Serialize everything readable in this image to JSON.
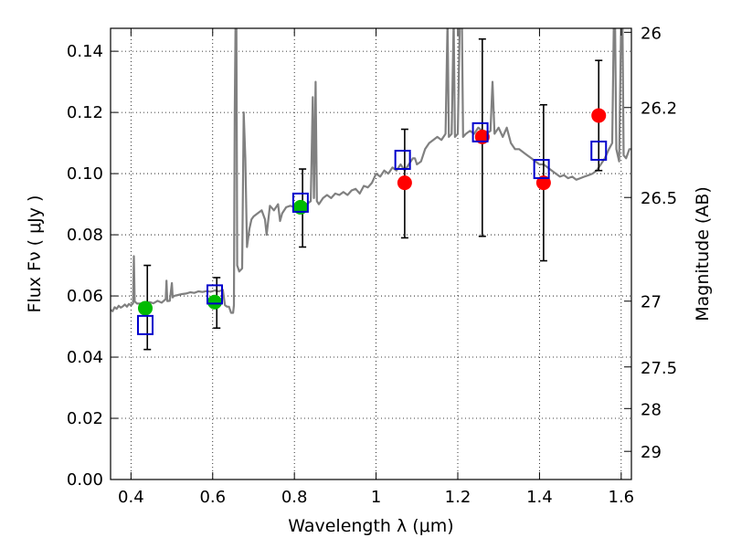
{
  "chart_data": {
    "type": "scatter",
    "xlabel": "Wavelength  λ (μm)",
    "ylabel": "Flux  Fν ( μJy )",
    "y2label": "Magnitude (AB)",
    "xlim": [
      0.35,
      1.625
    ],
    "ylim": [
      0.0,
      0.1475
    ],
    "grid": true,
    "x_ticks": [
      0.4,
      0.6,
      0.8,
      1.0,
      1.2,
      1.4,
      1.6
    ],
    "x_tick_labels": [
      "0.4",
      "0.6",
      "0.8",
      "1",
      "1.2",
      "1.4",
      "1.6"
    ],
    "y_ticks": [
      0.0,
      0.02,
      0.04,
      0.06,
      0.08,
      0.1,
      0.12,
      0.14
    ],
    "y_tick_labels": [
      "0.00",
      "0.02",
      "0.04",
      "0.06",
      "0.08",
      "0.10",
      "0.12",
      "0.14"
    ],
    "y2_ticks": [
      {
        "label": "26",
        "flux": 0.1462
      },
      {
        "label": "26.2",
        "flux": 0.1216
      },
      {
        "label": "26.5",
        "flux": 0.0922
      },
      {
        "label": "27",
        "flux": 0.0583
      },
      {
        "label": "27.5",
        "flux": 0.0368
      },
      {
        "label": "28",
        "flux": 0.0232
      },
      {
        "label": "29",
        "flux": 0.0092
      }
    ],
    "series": [
      {
        "name": "model spectrum",
        "kind": "line",
        "color": "#808080",
        "points": [
          [
            0.35,
            0.0555
          ],
          [
            0.355,
            0.055
          ],
          [
            0.36,
            0.0563
          ],
          [
            0.365,
            0.0558
          ],
          [
            0.37,
            0.0568
          ],
          [
            0.375,
            0.0562
          ],
          [
            0.38,
            0.0566
          ],
          [
            0.385,
            0.0572
          ],
          [
            0.39,
            0.0565
          ],
          [
            0.395,
            0.0574
          ],
          [
            0.4,
            0.0569
          ],
          [
            0.405,
            0.0576
          ],
          [
            0.407,
            0.073
          ],
          [
            0.409,
            0.0582
          ],
          [
            0.415,
            0.0575
          ],
          [
            0.425,
            0.0575
          ],
          [
            0.435,
            0.0577
          ],
          [
            0.445,
            0.058
          ],
          [
            0.455,
            0.0576
          ],
          [
            0.465,
            0.0584
          ],
          [
            0.475,
            0.0578
          ],
          [
            0.485,
            0.059
          ],
          [
            0.487,
            0.065
          ],
          [
            0.489,
            0.0583
          ],
          [
            0.495,
            0.0584
          ],
          [
            0.5,
            0.0642
          ],
          [
            0.502,
            0.0595
          ],
          [
            0.505,
            0.06
          ],
          [
            0.515,
            0.0603
          ],
          [
            0.525,
            0.0606
          ],
          [
            0.535,
            0.0608
          ],
          [
            0.545,
            0.0612
          ],
          [
            0.555,
            0.061
          ],
          [
            0.565,
            0.0615
          ],
          [
            0.575,
            0.0613
          ],
          [
            0.585,
            0.0616
          ],
          [
            0.595,
            0.0614
          ],
          [
            0.605,
            0.0618
          ],
          [
            0.615,
            0.0615
          ],
          [
            0.625,
            0.062
          ],
          [
            0.63,
            0.057
          ],
          [
            0.635,
            0.0565
          ],
          [
            0.64,
            0.0565
          ],
          [
            0.645,
            0.0545
          ],
          [
            0.65,
            0.0545
          ],
          [
            0.652,
            0.057
          ],
          [
            0.654,
            0.12
          ],
          [
            0.656,
            0.15
          ],
          [
            0.658,
            0.15
          ],
          [
            0.66,
            0.07
          ],
          [
            0.665,
            0.068
          ],
          [
            0.672,
            0.069
          ],
          [
            0.676,
            0.12
          ],
          [
            0.68,
            0.105
          ],
          [
            0.684,
            0.076
          ],
          [
            0.69,
            0.082
          ],
          [
            0.695,
            0.085
          ],
          [
            0.7,
            0.086
          ],
          [
            0.71,
            0.087
          ],
          [
            0.72,
            0.088
          ],
          [
            0.728,
            0.085
          ],
          [
            0.732,
            0.08
          ],
          [
            0.74,
            0.0895
          ],
          [
            0.75,
            0.088
          ],
          [
            0.76,
            0.09
          ],
          [
            0.765,
            0.0845
          ],
          [
            0.77,
            0.087
          ],
          [
            0.78,
            0.089
          ],
          [
            0.79,
            0.0895
          ],
          [
            0.8,
            0.089
          ],
          [
            0.81,
            0.09
          ],
          [
            0.82,
            0.0905
          ],
          [
            0.83,
            0.09
          ],
          [
            0.84,
            0.091
          ],
          [
            0.845,
            0.125
          ],
          [
            0.848,
            0.092
          ],
          [
            0.852,
            0.13
          ],
          [
            0.855,
            0.091
          ],
          [
            0.86,
            0.09
          ],
          [
            0.87,
            0.092
          ],
          [
            0.88,
            0.093
          ],
          [
            0.89,
            0.092
          ],
          [
            0.9,
            0.0935
          ],
          [
            0.91,
            0.093
          ],
          [
            0.92,
            0.094
          ],
          [
            0.93,
            0.093
          ],
          [
            0.94,
            0.0945
          ],
          [
            0.95,
            0.095
          ],
          [
            0.96,
            0.0935
          ],
          [
            0.97,
            0.096
          ],
          [
            0.98,
            0.0955
          ],
          [
            0.99,
            0.097
          ],
          [
            1.0,
            0.1
          ],
          [
            1.01,
            0.099
          ],
          [
            1.02,
            0.101
          ],
          [
            1.03,
            0.1
          ],
          [
            1.04,
            0.102
          ],
          [
            1.05,
            0.101
          ],
          [
            1.06,
            0.103
          ],
          [
            1.07,
            0.101
          ],
          [
            1.08,
            0.103
          ],
          [
            1.085,
            0.104
          ],
          [
            1.09,
            0.105
          ],
          [
            1.095,
            0.105
          ],
          [
            1.1,
            0.103
          ],
          [
            1.11,
            0.104
          ],
          [
            1.12,
            0.108
          ],
          [
            1.13,
            0.11
          ],
          [
            1.14,
            0.111
          ],
          [
            1.15,
            0.112
          ],
          [
            1.16,
            0.111
          ],
          [
            1.17,
            0.113
          ],
          [
            1.175,
            0.15
          ],
          [
            1.178,
            0.112
          ],
          [
            1.185,
            0.113
          ],
          [
            1.19,
            0.15
          ],
          [
            1.193,
            0.112
          ],
          [
            1.2,
            0.113
          ],
          [
            1.205,
            0.15
          ],
          [
            1.21,
            0.15
          ],
          [
            1.213,
            0.112
          ],
          [
            1.22,
            0.113
          ],
          [
            1.23,
            0.114
          ],
          [
            1.24,
            0.113
          ],
          [
            1.25,
            0.115
          ],
          [
            1.26,
            0.114
          ],
          [
            1.27,
            0.113
          ],
          [
            1.28,
            0.114
          ],
          [
            1.285,
            0.13
          ],
          [
            1.29,
            0.113
          ],
          [
            1.3,
            0.115
          ],
          [
            1.31,
            0.112
          ],
          [
            1.32,
            0.115
          ],
          [
            1.33,
            0.11
          ],
          [
            1.34,
            0.108
          ],
          [
            1.35,
            0.108
          ],
          [
            1.36,
            0.107
          ],
          [
            1.37,
            0.106
          ],
          [
            1.38,
            0.105
          ],
          [
            1.39,
            0.104
          ],
          [
            1.4,
            0.103
          ],
          [
            1.41,
            0.103
          ],
          [
            1.42,
            0.102
          ],
          [
            1.43,
            0.101
          ],
          [
            1.44,
            0.1
          ],
          [
            1.45,
            0.099
          ],
          [
            1.46,
            0.0995
          ],
          [
            1.47,
            0.0985
          ],
          [
            1.48,
            0.099
          ],
          [
            1.49,
            0.098
          ],
          [
            1.5,
            0.0985
          ],
          [
            1.51,
            0.099
          ],
          [
            1.52,
            0.0995
          ],
          [
            1.53,
            0.1
          ],
          [
            1.54,
            0.101
          ],
          [
            1.55,
            0.103
          ],
          [
            1.56,
            0.105
          ],
          [
            1.57,
            0.108
          ],
          [
            1.578,
            0.11
          ],
          [
            1.582,
            0.15
          ],
          [
            1.585,
            0.15
          ],
          [
            1.588,
            0.108
          ],
          [
            1.595,
            0.104
          ],
          [
            1.6,
            0.15
          ],
          [
            1.603,
            0.15
          ],
          [
            1.606,
            0.106
          ],
          [
            1.612,
            0.105
          ],
          [
            1.62,
            0.108
          ],
          [
            1.625,
            0.108
          ]
        ]
      },
      {
        "name": "observed (green)",
        "kind": "points",
        "color": "#00bb00",
        "points": [
          [
            0.435,
            0.056
          ],
          [
            0.605,
            0.058
          ],
          [
            0.815,
            0.089
          ]
        ]
      },
      {
        "name": "observed (red)",
        "kind": "points",
        "color": "#ff0000",
        "points": [
          [
            1.07,
            0.097
          ],
          [
            1.26,
            0.112
          ],
          [
            1.41,
            0.097
          ],
          [
            1.545,
            0.119
          ]
        ]
      },
      {
        "name": "model photometry",
        "kind": "squares",
        "color": "#0000cc",
        "points": [
          [
            0.435,
            0.0505
          ],
          [
            0.605,
            0.0605
          ],
          [
            0.815,
            0.0905
          ],
          [
            1.065,
            0.1045
          ],
          [
            1.255,
            0.1135
          ],
          [
            1.405,
            0.1015
          ],
          [
            1.545,
            0.1075
          ]
        ]
      },
      {
        "name": "error bars",
        "kind": "errorbars",
        "color": "#000000",
        "bars": [
          {
            "x": 0.44,
            "low": 0.0425,
            "high": 0.07
          },
          {
            "x": 0.61,
            "low": 0.0495,
            "high": 0.066
          },
          {
            "x": 0.82,
            "low": 0.076,
            "high": 0.1015
          },
          {
            "x": 1.07,
            "low": 0.079,
            "high": 0.1145
          },
          {
            "x": 1.26,
            "low": 0.0795,
            "high": 0.144
          },
          {
            "x": 1.41,
            "low": 0.0715,
            "high": 0.1225
          },
          {
            "x": 1.545,
            "low": 0.101,
            "high": 0.137
          }
        ]
      }
    ]
  }
}
